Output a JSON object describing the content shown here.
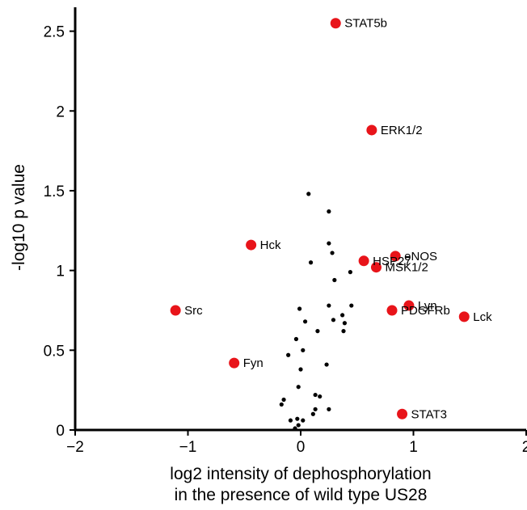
{
  "chart_data": {
    "type": "scatter",
    "xlabel_lines": [
      "log2 intensity of dephosphorylation",
      "in the presence of wild type US28"
    ],
    "ylabel": "-log10 p value",
    "xlim": [
      -2,
      2
    ],
    "ylim": [
      0,
      2.65
    ],
    "x_ticks": [
      -2,
      -1,
      0,
      1,
      2
    ],
    "x_tick_labels": [
      "−2",
      "−1",
      "0",
      "1",
      "2"
    ],
    "y_ticks": [
      0,
      0.5,
      1,
      1.5,
      2,
      2.5
    ],
    "y_tick_labels": [
      "0",
      "0.5",
      "1",
      "1.5",
      "2",
      "2.5"
    ],
    "grid": false,
    "highlight_color": "#e8141a",
    "background_color": "#000000",
    "labeled_points": [
      {
        "label": "STAT5b",
        "x": 0.31,
        "y": 2.55
      },
      {
        "label": "ERK1/2",
        "x": 0.63,
        "y": 1.88
      },
      {
        "label": "Hck",
        "x": -0.44,
        "y": 1.16
      },
      {
        "label": "eNOS",
        "x": 0.84,
        "y": 1.09
      },
      {
        "label": "HSP27",
        "x": 0.56,
        "y": 1.06
      },
      {
        "label": "MSK1/2",
        "x": 0.67,
        "y": 1.02
      },
      {
        "label": "Lyn",
        "x": 0.96,
        "y": 0.78
      },
      {
        "label": "PDGFRb",
        "x": 0.81,
        "y": 0.75
      },
      {
        "label": "Lck",
        "x": 1.45,
        "y": 0.71
      },
      {
        "label": "Src",
        "x": -1.11,
        "y": 0.75
      },
      {
        "label": "Fyn",
        "x": -0.59,
        "y": 0.42
      },
      {
        "label": "STAT3",
        "x": 0.9,
        "y": 0.1
      }
    ],
    "background_points": [
      {
        "x": 0.07,
        "y": 1.48
      },
      {
        "x": 0.25,
        "y": 1.37
      },
      {
        "x": 0.25,
        "y": 1.17
      },
      {
        "x": 0.28,
        "y": 1.11
      },
      {
        "x": 0.09,
        "y": 1.05
      },
      {
        "x": 0.44,
        "y": 0.99
      },
      {
        "x": 0.3,
        "y": 0.94
      },
      {
        "x": -0.01,
        "y": 0.76
      },
      {
        "x": 0.25,
        "y": 0.78
      },
      {
        "x": 0.45,
        "y": 0.78
      },
      {
        "x": 0.37,
        "y": 0.72
      },
      {
        "x": 0.29,
        "y": 0.69
      },
      {
        "x": 0.39,
        "y": 0.67
      },
      {
        "x": 0.04,
        "y": 0.68
      },
      {
        "x": 0.15,
        "y": 0.62
      },
      {
        "x": -0.04,
        "y": 0.57
      },
      {
        "x": 0.38,
        "y": 0.62
      },
      {
        "x": 0.02,
        "y": 0.5
      },
      {
        "x": -0.11,
        "y": 0.47
      },
      {
        "x": 0.23,
        "y": 0.41
      },
      {
        "x": 0.0,
        "y": 0.38
      },
      {
        "x": -0.02,
        "y": 0.27
      },
      {
        "x": 0.13,
        "y": 0.22
      },
      {
        "x": 0.17,
        "y": 0.21
      },
      {
        "x": -0.15,
        "y": 0.19
      },
      {
        "x": -0.17,
        "y": 0.16
      },
      {
        "x": 0.13,
        "y": 0.13
      },
      {
        "x": 0.25,
        "y": 0.13
      },
      {
        "x": 0.11,
        "y": 0.1
      },
      {
        "x": -0.03,
        "y": 0.07
      },
      {
        "x": -0.09,
        "y": 0.06
      },
      {
        "x": 0.02,
        "y": 0.06
      },
      {
        "x": -0.02,
        "y": 0.03
      },
      {
        "x": -0.05,
        "y": 0.01
      }
    ]
  }
}
